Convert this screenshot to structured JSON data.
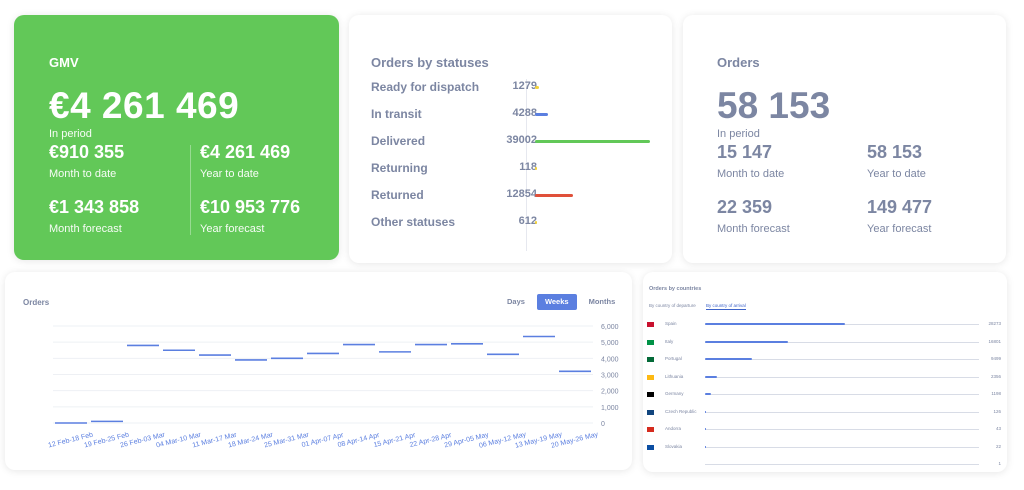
{
  "gmv": {
    "title": "GMV",
    "total": "€4 261 469",
    "total_label": "In period",
    "month_to_date": "€910 355",
    "month_to_date_label": "Month to date",
    "year_to_date": "€4 261 469",
    "year_to_date_label": "Year to date",
    "month_forecast": "€1 343 858",
    "month_forecast_label": "Month forecast",
    "year_forecast": "€10 953 776",
    "year_forecast_label": "Year forecast"
  },
  "statuses": {
    "title": "Orders by statuses",
    "items": [
      {
        "label": "Ready for dispatch",
        "count": "1279",
        "value": 1279,
        "color": "#f2d23a"
      },
      {
        "label": "In transit",
        "count": "4288",
        "value": 4288,
        "color": "#5b7fe0"
      },
      {
        "label": "Delivered",
        "count": "39002",
        "value": 39002,
        "color": "#62c858"
      },
      {
        "label": "Returning",
        "count": "118",
        "value": 118,
        "color": "#f2d23a"
      },
      {
        "label": "Returned",
        "count": "12854",
        "value": 12854,
        "color": "#e0503a"
      },
      {
        "label": "Other statuses",
        "count": "612",
        "value": 612,
        "color": "#f2d23a"
      }
    ]
  },
  "orders": {
    "title": "Orders",
    "total": "58 153",
    "total_label": "In period",
    "month_to_date": "15 147",
    "month_to_date_label": "Month to date",
    "year_to_date": "58 153",
    "year_to_date_label": "Year to date",
    "month_forecast": "22 359",
    "month_forecast_label": "Month forecast",
    "year_forecast": "149 477",
    "year_forecast_label": "Year forecast"
  },
  "orders_chart": {
    "title": "Orders",
    "tabs": [
      {
        "label": "Days",
        "active": false
      },
      {
        "label": "Weeks",
        "active": true
      },
      {
        "label": "Months",
        "active": false
      }
    ]
  },
  "chart_data": {
    "type": "line",
    "title": "Orders",
    "xlabel": "",
    "ylabel": "",
    "ylim": [
      0,
      6000
    ],
    "yticks": [
      "0",
      "1,000",
      "2,000",
      "3,000",
      "4,000",
      "5,000",
      "6,000"
    ],
    "grid": true,
    "categories": [
      "12 Feb-18 Feb",
      "19 Feb-25 Feb",
      "26 Feb-03 Mar",
      "04 Mar-10 Mar",
      "11 Mar-17 Mar",
      "18 Mar-24 Mar",
      "25 Mar-31 Mar",
      "01 Apr-07 Apr",
      "08 Apr-14 Apr",
      "15 Apr-21 Apr",
      "22 Apr-28 Apr",
      "29 Apr-05 May",
      "06 May-12 May",
      "13 May-19 May",
      "20 May-26 May"
    ],
    "series": [
      {
        "color": "#5b7fe0",
        "values": [
          0,
          100,
          4800,
          4500,
          4200,
          3900,
          4000,
          4300,
          4850,
          4400,
          4850,
          4900,
          4250,
          5350,
          3200
        ]
      }
    ]
  },
  "countries": {
    "title": "Orders by countries",
    "tabs": [
      {
        "label": "By country of departure",
        "active": false
      },
      {
        "label": "By country of arrival",
        "active": true
      }
    ],
    "items": [
      {
        "name": "Spain",
        "count": "28273",
        "value": 28273,
        "flag": "#c8102e"
      },
      {
        "name": "Italy",
        "count": "16801",
        "value": 16801,
        "flag": "#009246"
      },
      {
        "name": "Portugal",
        "count": "9499",
        "value": 9499,
        "flag": "#046a38"
      },
      {
        "name": "Lithuania",
        "count": "2356",
        "value": 2356,
        "flag": "#fdb913"
      },
      {
        "name": "Germany",
        "count": "1198",
        "value": 1198,
        "flag": "#000000"
      },
      {
        "name": "Czech Republic",
        "count": "126",
        "value": 126,
        "flag": "#11457e"
      },
      {
        "name": "Andorra",
        "count": "43",
        "value": 43,
        "flag": "#d52b1e"
      },
      {
        "name": "Slovakia",
        "count": "22",
        "value": 22,
        "flag": "#0b4ea2"
      },
      {
        "name": "",
        "count": "1",
        "value": 1,
        "flag": "#ffffff"
      }
    ]
  }
}
